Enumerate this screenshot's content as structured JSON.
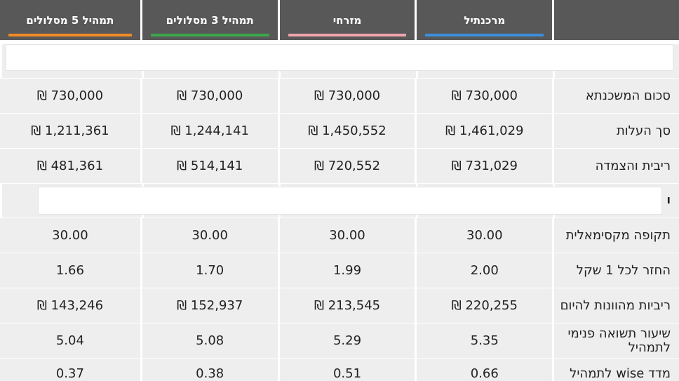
{
  "columns": [
    {
      "label": "",
      "accent": ""
    },
    {
      "label": "מרכנתיל",
      "accent": "#3b8fdc"
    },
    {
      "label": "מזרחי",
      "accent": "#f0a3ae"
    },
    {
      "label": "תמהיל 3 מסלולים",
      "accent": "#3aa84a"
    },
    {
      "label": "תמהיל 5 מסלולים",
      "accent": "#f08a24"
    }
  ],
  "band2_mark": "ו",
  "rows_top": [
    {
      "label": "סכום המשכנתא",
      "values": [
        "730,000 ₪",
        "730,000 ₪",
        "730,000 ₪",
        "730,000 ₪"
      ]
    },
    {
      "label": "סך העלות",
      "values": [
        "1,461,029 ₪",
        "1,450,552 ₪",
        "1,244,141 ₪",
        "1,211,361 ₪"
      ]
    },
    {
      "label": "ריבית והצמדה",
      "values": [
        "731,029 ₪",
        "720,552 ₪",
        "514,141 ₪",
        "481,361 ₪"
      ]
    }
  ],
  "rows_bottom": [
    {
      "label": "תקופה מקסימאלית",
      "values": [
        "30.00",
        "30.00",
        "30.00",
        "30.00"
      ]
    },
    {
      "label": "החזר לכל 1 שקל",
      "values": [
        "2.00",
        "1.99",
        "1.70",
        "1.66"
      ]
    },
    {
      "label": "ריביות מהוונות להיום",
      "values": [
        "220,255 ₪",
        "213,545 ₪",
        "152,937 ₪",
        "143,246 ₪"
      ]
    },
    {
      "label": "שיעור תשואה פנימי לתמהיל",
      "values": [
        "5.35",
        "5.29",
        "5.08",
        "5.04"
      ]
    },
    {
      "label": "מדד wise לתמהיל",
      "values": [
        "0.66",
        "0.51",
        "0.38",
        "0.37"
      ]
    }
  ]
}
